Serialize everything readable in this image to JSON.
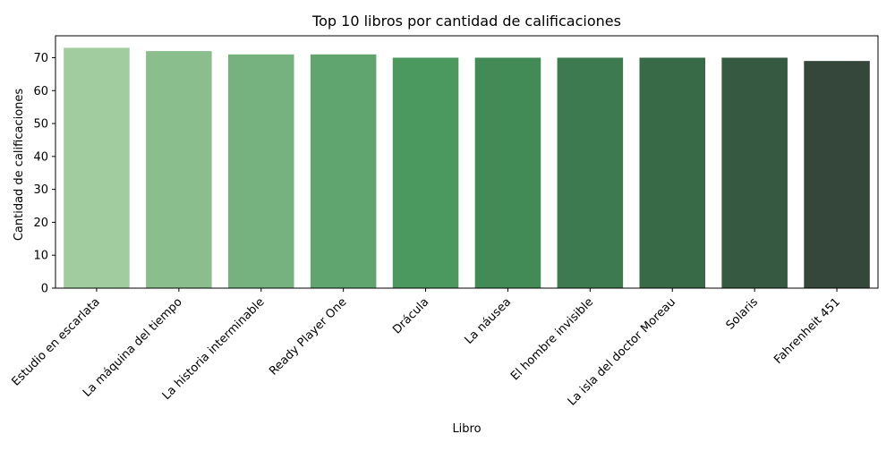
{
  "chart_data": {
    "type": "bar",
    "title": "Top 10 libros por cantidad de calificaciones",
    "xlabel": "Libro",
    "ylabel": "Cantidad de calificaciones",
    "categories": [
      "Estudio en escarlata",
      "La máquina del tiempo",
      "La historia interminable",
      "Ready Player One",
      "Drácula",
      "La náusea",
      "El hombre invisible",
      "La isla del doctor Moreau",
      "Solaris",
      "Fahrenheit 451"
    ],
    "values": [
      73,
      72,
      71,
      71,
      70,
      70,
      70,
      70,
      70,
      69
    ],
    "colors": [
      "#a1cca0",
      "#8abe8d",
      "#76b27f",
      "#60a570",
      "#4c995f",
      "#428b56",
      "#3e7a4f",
      "#396a48",
      "#355a41",
      "#35463b"
    ],
    "yticks": [
      0,
      10,
      20,
      30,
      40,
      50,
      60,
      70
    ],
    "ylim": [
      0,
      76.65
    ],
    "grid": false,
    "legend": "none"
  }
}
